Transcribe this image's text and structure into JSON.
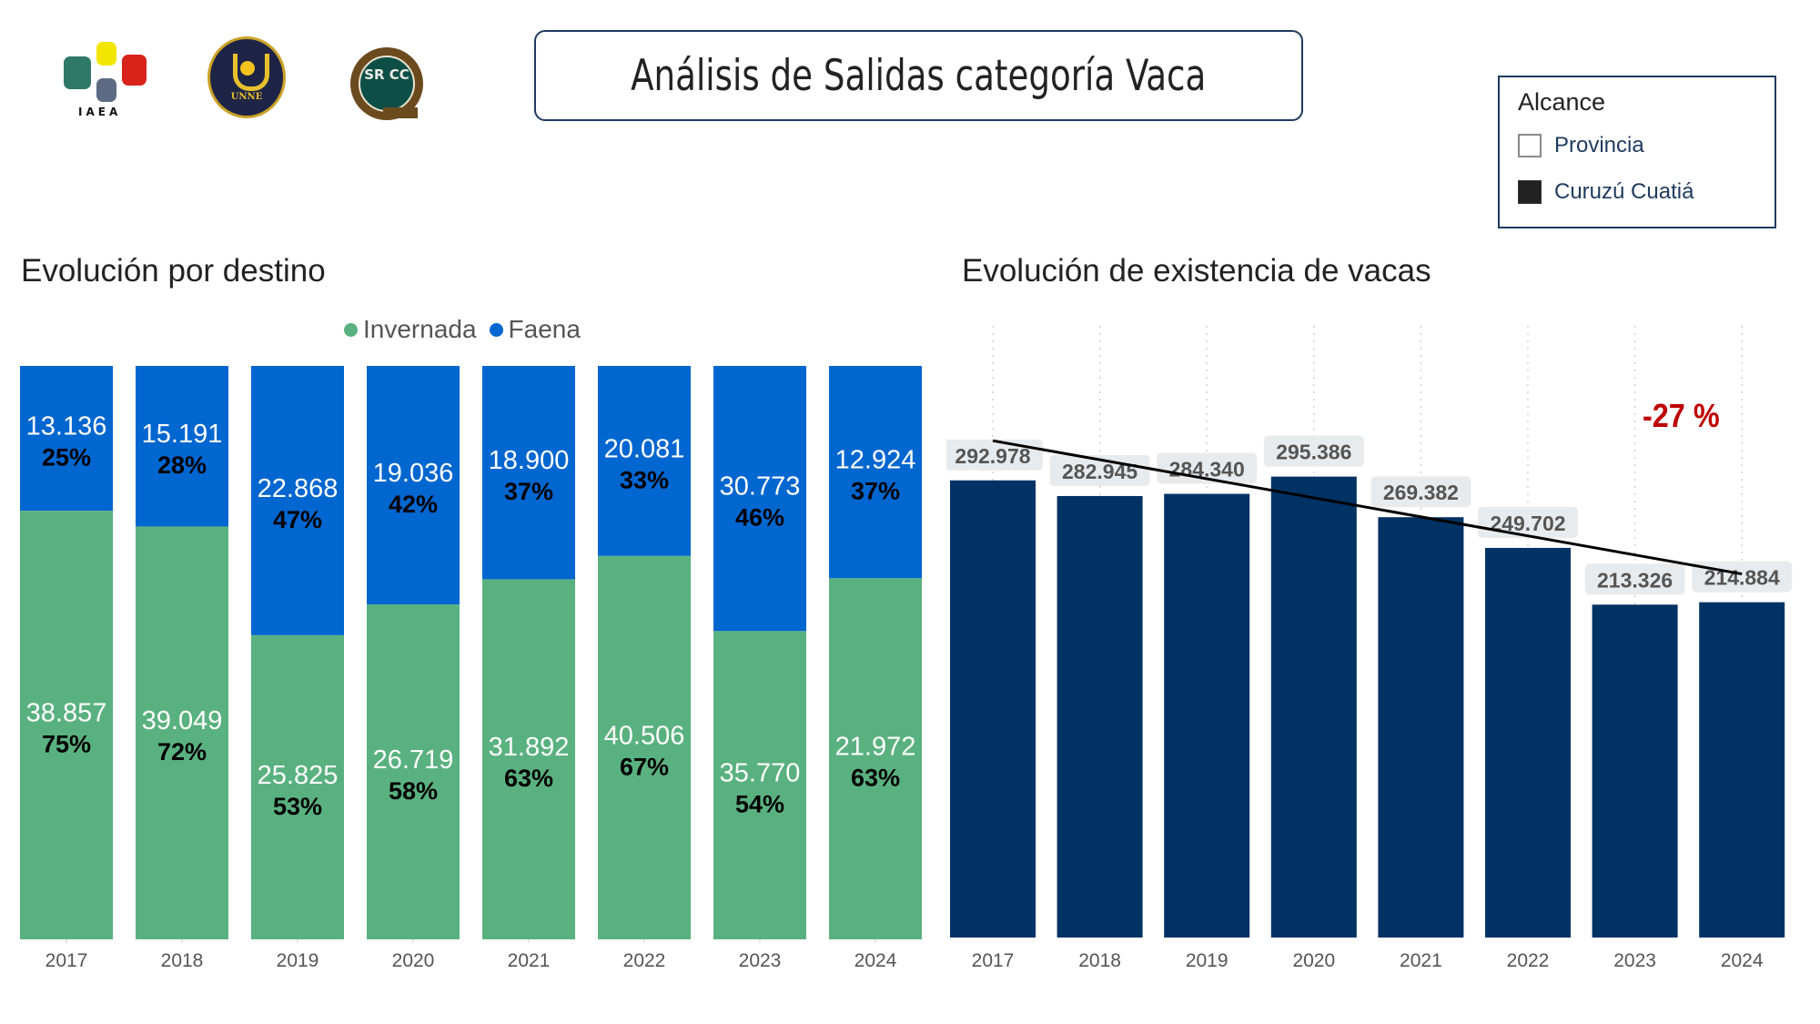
{
  "header": {
    "title": "Análisis de Salidas categoría Vaca",
    "logos": [
      {
        "name": "iaea-logo",
        "text": "IAEA"
      },
      {
        "name": "unne-logo",
        "text": "UNNE"
      },
      {
        "name": "srcc-logo",
        "text": "SR CC"
      }
    ]
  },
  "slicer": {
    "title": "Alcance",
    "items": [
      {
        "label": "Provincia",
        "selected": false
      },
      {
        "label": "Curuzú Cuatiá",
        "selected": true
      }
    ]
  },
  "colors": {
    "invernada": "#5ab180",
    "faena": "#0066d0",
    "existencia": "#003264",
    "trend": "#000000",
    "kpi": "#c00000",
    "label_bg": "#e8ebee"
  },
  "chart_data": [
    {
      "type": "bar",
      "stacked": true,
      "normalized": true,
      "title": "Evolución por destino",
      "xlabel": "",
      "ylabel": "",
      "ylim": [
        0,
        100
      ],
      "legend_position": "top-center",
      "categories": [
        "2017",
        "2018",
        "2019",
        "2020",
        "2021",
        "2022",
        "2023",
        "2024"
      ],
      "series": [
        {
          "name": "Invernada",
          "values": [
            38857,
            39049,
            25825,
            26719,
            31892,
            40506,
            35770,
            21972
          ],
          "value_labels": [
            "38.857",
            "39.049",
            "25.825",
            "26.719",
            "31.892",
            "40.506",
            "35.770",
            "21.972"
          ],
          "percent_labels": [
            "75%",
            "72%",
            "53%",
            "58%",
            "63%",
            "67%",
            "54%",
            "63%"
          ]
        },
        {
          "name": "Faena",
          "values": [
            13136,
            15191,
            22868,
            19036,
            18900,
            20081,
            30773,
            12924
          ],
          "value_labels": [
            "13.136",
            "15.191",
            "22.868",
            "19.036",
            "18.900",
            "20.081",
            "30.773",
            "12.924"
          ],
          "percent_labels": [
            "25%",
            "28%",
            "47%",
            "42%",
            "37%",
            "33%",
            "46%",
            "37%"
          ]
        }
      ]
    },
    {
      "type": "bar",
      "title": "Evolución de existencia de vacas",
      "xlabel": "",
      "ylabel": "",
      "ylim": [
        0,
        392000
      ],
      "grid": "vertical-dotted",
      "categories": [
        "2017",
        "2018",
        "2019",
        "2020",
        "2021",
        "2022",
        "2023",
        "2024"
      ],
      "values": [
        292978,
        282945,
        284340,
        295386,
        269382,
        249702,
        213326,
        214884
      ],
      "value_labels": [
        "292.978",
        "282.945",
        "284.340",
        "295.386",
        "269.382",
        "249.702",
        "213.326",
        "214.884"
      ],
      "trend_line": {
        "type": "linear",
        "from": "2017",
        "to": "2024"
      },
      "annotation": "-27 %"
    }
  ]
}
